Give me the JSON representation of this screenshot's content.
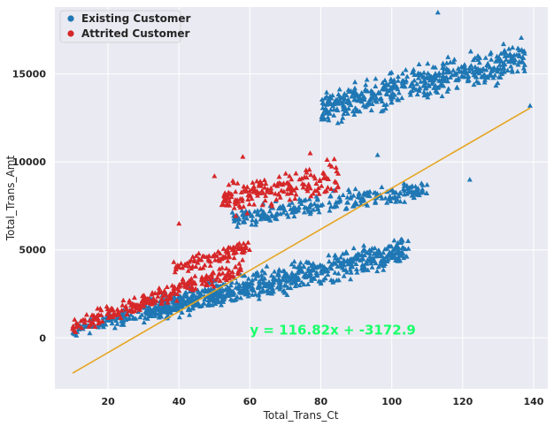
{
  "chart_data": {
    "type": "scatter",
    "title": "",
    "xlabel": "Total_Trans_Ct",
    "ylabel": "Total_Trans_Amt",
    "xlim": [
      5,
      144
    ],
    "ylim": [
      -2900,
      18800
    ],
    "xticks": [
      20,
      40,
      60,
      80,
      100,
      120,
      140
    ],
    "yticks": [
      0,
      5000,
      10000,
      15000
    ],
    "grid": true,
    "legend_position": "top-left",
    "marker": "triangle",
    "series": [
      {
        "name": "Existing Customer",
        "color": "#1f77b4",
        "clusters": [
          {
            "x_range": [
              10,
              60
            ],
            "y_trend": [
              500,
              2800
            ],
            "y_spread": 600
          },
          {
            "x_range": [
              30,
              105
            ],
            "y_trend": [
              1500,
              5000
            ],
            "y_spread": 1100
          },
          {
            "x_range": [
              55,
              110
            ],
            "y_trend": [
              6800,
              8500
            ],
            "y_spread": 800
          },
          {
            "x_range": [
              80,
              138
            ],
            "y_trend": [
              13000,
              16000
            ],
            "y_spread": 1400
          }
        ],
        "outliers": [
          [
            113,
            18500
          ],
          [
            122,
            9000
          ],
          [
            139,
            13200
          ],
          [
            96,
            10400
          ]
        ]
      },
      {
        "name": "Attrited Customer",
        "color": "#d62728",
        "clusters": [
          {
            "x_range": [
              10,
              58
            ],
            "y_trend": [
              700,
              4000
            ],
            "y_spread": 700
          },
          {
            "x_range": [
              38,
              60
            ],
            "y_trend": [
              3800,
              5200
            ],
            "y_spread": 600
          },
          {
            "x_range": [
              52,
              85
            ],
            "y_trend": [
              7800,
              9200
            ],
            "y_spread": 1300
          }
        ],
        "outliers": [
          [
            40,
            6500
          ],
          [
            50,
            9200
          ],
          [
            77,
            10500
          ],
          [
            58,
            10300
          ]
        ]
      }
    ],
    "regression": {
      "slope": 116.82,
      "intercept": -3172.9,
      "x_range": [
        10,
        139
      ],
      "color": "#e5a520",
      "label": "y = 116.82x + -3172.9",
      "label_color": "#19ff6a",
      "label_at": [
        60,
        200
      ]
    }
  }
}
